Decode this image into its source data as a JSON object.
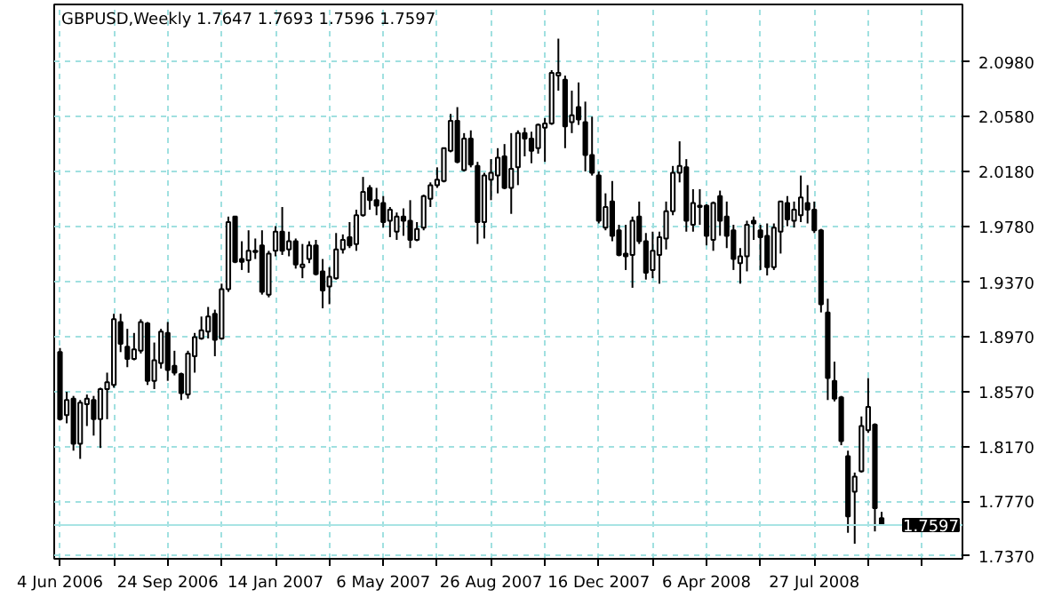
{
  "chart_data": {
    "type": "candlestick",
    "title": "GBPUSD,Weekly  1.7647 1.7693 1.7596 1.7597",
    "x": [
      "2006-06-04",
      "2006-06-11",
      "2006-06-18",
      "2006-06-25",
      "2006-07-02",
      "2006-07-09",
      "2006-07-16",
      "2006-07-23",
      "2006-07-30",
      "2006-08-06",
      "2006-08-13",
      "2006-08-20",
      "2006-08-27",
      "2006-09-03",
      "2006-09-10",
      "2006-09-17",
      "2006-09-24",
      "2006-10-01",
      "2006-10-08",
      "2006-10-15",
      "2006-10-22",
      "2006-10-29",
      "2006-11-05",
      "2006-11-12",
      "2006-11-19",
      "2006-11-26",
      "2006-12-03",
      "2006-12-10",
      "2006-12-17",
      "2006-12-24",
      "2006-12-31",
      "2007-01-07",
      "2007-01-14",
      "2007-01-21",
      "2007-01-28",
      "2007-02-04",
      "2007-02-11",
      "2007-02-18",
      "2007-02-25",
      "2007-03-04",
      "2007-03-11",
      "2007-03-18",
      "2007-03-25",
      "2007-04-01",
      "2007-04-08",
      "2007-04-15",
      "2007-04-22",
      "2007-04-29",
      "2007-05-06",
      "2007-05-13",
      "2007-05-20",
      "2007-05-27",
      "2007-06-03",
      "2007-06-10",
      "2007-06-17",
      "2007-06-24",
      "2007-07-01",
      "2007-07-08",
      "2007-07-15",
      "2007-07-22",
      "2007-07-29",
      "2007-08-05",
      "2007-08-12",
      "2007-08-19",
      "2007-08-26",
      "2007-09-02",
      "2007-09-09",
      "2007-09-16",
      "2007-09-23",
      "2007-09-30",
      "2007-10-07",
      "2007-10-14",
      "2007-10-21",
      "2007-10-28",
      "2007-11-04",
      "2007-11-11",
      "2007-11-18",
      "2007-11-25",
      "2007-12-02",
      "2007-12-09",
      "2007-12-16",
      "2007-12-23",
      "2007-12-30",
      "2008-01-06",
      "2008-01-13",
      "2008-01-20",
      "2008-01-27",
      "2008-02-03",
      "2008-02-10",
      "2008-02-17",
      "2008-02-24",
      "2008-03-02",
      "2008-03-09",
      "2008-03-16",
      "2008-03-23",
      "2008-03-30",
      "2008-04-06",
      "2008-04-13",
      "2008-04-20",
      "2008-04-27",
      "2008-05-04",
      "2008-05-11",
      "2008-05-18",
      "2008-05-25",
      "2008-06-01",
      "2008-06-08",
      "2008-06-15",
      "2008-06-22",
      "2008-06-29",
      "2008-07-06",
      "2008-07-13",
      "2008-07-20",
      "2008-07-27",
      "2008-08-03",
      "2008-08-10",
      "2008-08-17",
      "2008-08-24",
      "2008-08-31",
      "2008-09-07",
      "2008-09-14",
      "2008-09-21",
      "2008-09-28",
      "2008-10-05"
    ],
    "ohlc": [
      [
        1.886,
        1.889,
        1.836,
        1.837
      ],
      [
        1.84,
        1.857,
        1.834,
        1.851
      ],
      [
        1.852,
        1.854,
        1.814,
        1.819
      ],
      [
        1.819,
        1.851,
        1.808,
        1.849
      ],
      [
        1.848,
        1.855,
        1.832,
        1.852
      ],
      [
        1.851,
        1.854,
        1.825,
        1.837
      ],
      [
        1.837,
        1.86,
        1.816,
        1.859
      ],
      [
        1.859,
        1.871,
        1.837,
        1.864
      ],
      [
        1.862,
        1.914,
        1.86,
        1.91
      ],
      [
        1.908,
        1.914,
        1.886,
        1.892
      ],
      [
        1.89,
        1.903,
        1.875,
        1.881
      ],
      [
        1.881,
        1.9,
        1.88,
        1.888
      ],
      [
        1.887,
        1.91,
        1.885,
        1.908
      ],
      [
        1.907,
        1.908,
        1.862,
        1.865
      ],
      [
        1.865,
        1.893,
        1.859,
        1.88
      ],
      [
        1.878,
        1.903,
        1.874,
        1.901
      ],
      [
        1.9,
        1.908,
        1.865,
        1.873
      ],
      [
        1.876,
        1.887,
        1.869,
        1.871
      ],
      [
        1.87,
        1.871,
        1.851,
        1.856
      ],
      [
        1.855,
        1.887,
        1.852,
        1.885
      ],
      [
        1.883,
        1.9,
        1.871,
        1.897
      ],
      [
        1.896,
        1.912,
        1.895,
        1.902
      ],
      [
        1.901,
        1.919,
        1.896,
        1.912
      ],
      [
        1.914,
        1.917,
        1.883,
        1.895
      ],
      [
        1.896,
        1.936,
        1.895,
        1.932
      ],
      [
        1.932,
        1.985,
        1.93,
        1.981
      ],
      [
        1.985,
        1.985,
        1.951,
        1.952
      ],
      [
        1.954,
        1.967,
        1.946,
        1.952
      ],
      [
        1.953,
        1.975,
        1.944,
        1.96
      ],
      [
        1.959,
        1.969,
        1.954,
        1.96
      ],
      [
        1.964,
        1.975,
        1.928,
        1.93
      ],
      [
        1.928,
        1.96,
        1.926,
        1.958
      ],
      [
        1.96,
        1.978,
        1.956,
        1.974
      ],
      [
        1.974,
        1.992,
        1.957,
        1.96
      ],
      [
        1.961,
        1.974,
        1.956,
        1.967
      ],
      [
        1.967,
        1.969,
        1.947,
        1.95
      ],
      [
        1.948,
        1.965,
        1.94,
        1.95
      ],
      [
        1.954,
        1.967,
        1.951,
        1.964
      ],
      [
        1.964,
        1.968,
        1.942,
        1.943
      ],
      [
        1.945,
        1.954,
        1.918,
        1.931
      ],
      [
        1.934,
        1.948,
        1.921,
        1.941
      ],
      [
        1.94,
        1.973,
        1.939,
        1.961
      ],
      [
        1.961,
        1.972,
        1.958,
        1.968
      ],
      [
        1.97,
        1.981,
        1.962,
        1.964
      ],
      [
        1.965,
        1.99,
        1.96,
        1.986
      ],
      [
        1.986,
        2.014,
        1.985,
        2.003
      ],
      [
        2.006,
        2.008,
        1.99,
        1.997
      ],
      [
        1.997,
        2.006,
        1.986,
        1.993
      ],
      [
        1.995,
        2.0,
        1.977,
        1.981
      ],
      [
        1.982,
        1.992,
        1.97,
        1.99
      ],
      [
        1.974,
        1.988,
        1.968,
        1.985
      ],
      [
        1.985,
        1.991,
        1.971,
        1.982
      ],
      [
        1.982,
        1.997,
        1.962,
        1.968
      ],
      [
        1.968,
        1.981,
        1.967,
        1.976
      ],
      [
        1.977,
        2.001,
        1.975,
        2.0
      ],
      [
        1.998,
        2.01,
        1.992,
        2.008
      ],
      [
        2.008,
        2.021,
        2.006,
        2.012
      ],
      [
        2.011,
        2.035,
        2.01,
        2.035
      ],
      [
        2.033,
        2.06,
        2.032,
        2.055
      ],
      [
        2.055,
        2.065,
        2.024,
        2.025
      ],
      [
        2.019,
        2.046,
        2.018,
        2.042
      ],
      [
        2.042,
        2.048,
        2.021,
        2.023
      ],
      [
        2.022,
        2.025,
        1.965,
        1.981
      ],
      [
        1.981,
        2.017,
        1.969,
        2.015
      ],
      [
        2.012,
        2.027,
        1.997,
        2.017
      ],
      [
        2.015,
        2.035,
        2.002,
        2.028
      ],
      [
        2.029,
        2.038,
        2.005,
        2.006
      ],
      [
        2.006,
        2.046,
        1.987,
        2.02
      ],
      [
        2.021,
        2.048,
        2.008,
        2.046
      ],
      [
        2.046,
        2.05,
        2.029,
        2.042
      ],
      [
        2.042,
        2.047,
        2.024,
        2.033
      ],
      [
        2.035,
        2.053,
        2.031,
        2.052
      ],
      [
        2.05,
        2.057,
        2.025,
        2.053
      ],
      [
        2.053,
        2.092,
        2.052,
        2.09
      ],
      [
        2.088,
        2.115,
        2.077,
        2.09
      ],
      [
        2.085,
        2.088,
        2.035,
        2.051
      ],
      [
        2.054,
        2.077,
        2.046,
        2.059
      ],
      [
        2.065,
        2.083,
        2.052,
        2.056
      ],
      [
        2.054,
        2.069,
        2.018,
        2.03
      ],
      [
        2.03,
        2.058,
        2.015,
        2.017
      ],
      [
        2.015,
        2.018,
        1.98,
        1.982
      ],
      [
        1.977,
        2.002,
        1.975,
        1.992
      ],
      [
        1.996,
        2.011,
        1.967,
        1.971
      ],
      [
        1.975,
        1.979,
        1.956,
        1.957
      ],
      [
        1.958,
        1.979,
        1.946,
        1.956
      ],
      [
        1.957,
        1.985,
        1.933,
        1.982
      ],
      [
        1.985,
        1.996,
        1.965,
        1.967
      ],
      [
        1.967,
        1.973,
        1.939,
        1.944
      ],
      [
        1.946,
        1.974,
        1.94,
        1.96
      ],
      [
        1.957,
        1.974,
        1.936,
        1.97
      ],
      [
        1.969,
        1.996,
        1.961,
        1.989
      ],
      [
        1.989,
        2.022,
        1.986,
        2.017
      ],
      [
        2.017,
        2.04,
        2.01,
        2.022
      ],
      [
        2.021,
        2.027,
        1.974,
        1.982
      ],
      [
        1.979,
        2.005,
        1.974,
        1.995
      ],
      [
        1.993,
        2.005,
        1.979,
        1.992
      ],
      [
        1.993,
        1.994,
        1.964,
        1.971
      ],
      [
        1.968,
        1.996,
        1.96,
        1.995
      ],
      [
        2.0,
        2.004,
        1.971,
        1.982
      ],
      [
        1.985,
        1.996,
        1.962,
        1.971
      ],
      [
        1.975,
        1.979,
        1.946,
        1.954
      ],
      [
        1.951,
        1.962,
        1.936,
        1.956
      ],
      [
        1.956,
        1.982,
        1.945,
        1.979
      ],
      [
        1.982,
        1.985,
        1.968,
        1.98
      ],
      [
        1.975,
        1.979,
        1.946,
        1.97
      ],
      [
        1.971,
        1.98,
        1.942,
        1.948
      ],
      [
        1.948,
        1.98,
        1.946,
        1.977
      ],
      [
        1.974,
        1.996,
        1.958,
        1.996
      ],
      [
        1.995,
        2.0,
        1.978,
        1.983
      ],
      [
        1.982,
        1.996,
        1.977,
        1.99
      ],
      [
        1.986,
        2.015,
        1.981,
        1.999
      ],
      [
        1.995,
        2.008,
        1.98,
        1.99
      ],
      [
        1.99,
        1.996,
        1.973,
        1.975
      ],
      [
        1.975,
        1.976,
        1.915,
        1.921
      ],
      [
        1.915,
        1.925,
        1.851,
        1.867
      ],
      [
        1.865,
        1.879,
        1.85,
        1.852
      ],
      [
        1.853,
        1.854,
        1.818,
        1.821
      ],
      [
        1.81,
        1.814,
        1.754,
        1.766
      ],
      [
        1.784,
        1.798,
        1.746,
        1.795
      ],
      [
        1.799,
        1.839,
        1.798,
        1.832
      ],
      [
        1.829,
        1.867,
        1.827,
        1.846
      ],
      [
        1.833,
        1.834,
        1.755,
        1.772
      ],
      [
        1.7647,
        1.7693,
        1.7596,
        1.7597
      ]
    ],
    "xlim": [
      "2006-05-29",
      "2008-12-28"
    ],
    "xticks": [
      {
        "value": "2006-06-04",
        "label": "4 Jun 2006"
      },
      {
        "value": "2006-07-30",
        "label": null
      },
      {
        "value": "2006-09-24",
        "label": "24 Sep 2006"
      },
      {
        "value": "2006-11-19",
        "label": null
      },
      {
        "value": "2007-01-14",
        "label": "14 Jan 2007"
      },
      {
        "value": "2007-03-11",
        "label": null
      },
      {
        "value": "2007-05-06",
        "label": "6 May 2007"
      },
      {
        "value": "2007-07-01",
        "label": null
      },
      {
        "value": "2007-08-26",
        "label": "26 Aug 2007"
      },
      {
        "value": "2007-10-21",
        "label": null
      },
      {
        "value": "2007-12-16",
        "label": "16 Dec 2007"
      },
      {
        "value": "2008-02-10",
        "label": null
      },
      {
        "value": "2008-04-06",
        "label": "6 Apr 2008"
      },
      {
        "value": "2008-06-01",
        "label": null
      },
      {
        "value": "2008-07-27",
        "label": "27 Jul 2008"
      },
      {
        "value": "2008-09-21",
        "label": null
      },
      {
        "value": "2008-11-16",
        "label": null
      }
    ],
    "ylim": [
      1.735,
      2.14
    ],
    "yticks": [
      {
        "value": 1.737,
        "label": "1.7370"
      },
      {
        "value": 1.777,
        "label": "1.7770"
      },
      {
        "value": 1.817,
        "label": "1.8170"
      },
      {
        "value": 1.857,
        "label": "1.8570"
      },
      {
        "value": 1.897,
        "label": "1.8970"
      },
      {
        "value": 1.937,
        "label": "1.9370"
      },
      {
        "value": 1.978,
        "label": "1.9780"
      },
      {
        "value": 2.018,
        "label": "2.0180"
      },
      {
        "value": 2.058,
        "label": "2.0580"
      },
      {
        "value": 2.098,
        "label": "2.0980"
      }
    ],
    "ref_lines": [
      {
        "axis": "y",
        "value": 1.7597,
        "label": "1.7597",
        "color": "#a8e4e4"
      }
    ],
    "grid": true
  }
}
